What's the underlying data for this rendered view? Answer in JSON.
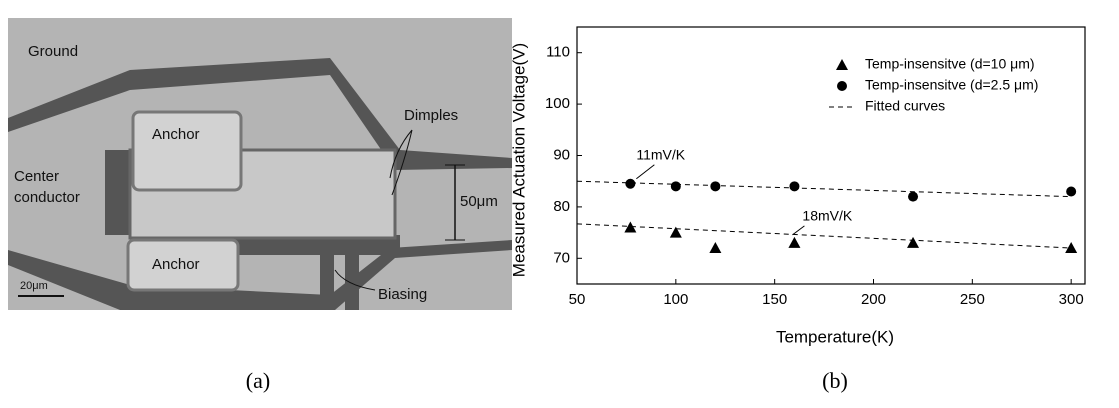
{
  "panel_a": {
    "labels": {
      "ground": "Ground",
      "anchor_top": "Anchor",
      "anchor_bottom": "Anchor",
      "dimples": "Dimples",
      "center": "Center",
      "conductor": "conductor",
      "gap": "50μm",
      "biasing": "Biasing",
      "scale": "20μm"
    },
    "caption": "(a)"
  },
  "chart_data": {
    "type": "scatter",
    "caption": "(b)",
    "x_label": "Temperature(K)",
    "y_label": "Measured Actuation Voltage(V)",
    "xlim": [
      50,
      307
    ],
    "xticks": [
      50,
      100,
      150,
      200,
      250,
      300
    ],
    "ylim": [
      65,
      115
    ],
    "yticks": [
      70,
      80,
      90,
      100,
      110
    ],
    "legend": "upper right",
    "annotations": [
      "11mV/K",
      "18mV/K"
    ],
    "series": [
      {
        "name": "Temp-insensitve (d=10 μm)",
        "color": "#000000",
        "marker": "triangle",
        "x": [
          77,
          100,
          120,
          160,
          220,
          300
        ],
        "values": [
          76,
          75,
          72,
          73,
          73,
          72
        ]
      },
      {
        "name": "Temp-insensitve (d=2.5 μm)",
        "color": "#000000",
        "marker": "circle",
        "x": [
          77,
          100,
          120,
          160,
          220,
          300
        ],
        "values": [
          84.5,
          84,
          84,
          84,
          82,
          83
        ]
      },
      {
        "name": "Fitted curves",
        "color": "#000000",
        "marker": "dash",
        "x": [
          50,
          300
        ],
        "values": [
          85,
          82
        ]
      },
      {
        "color": "#000000",
        "marker": "dash",
        "x": [
          50,
          300
        ],
        "values": [
          76.7,
          72
        ]
      }
    ]
  }
}
